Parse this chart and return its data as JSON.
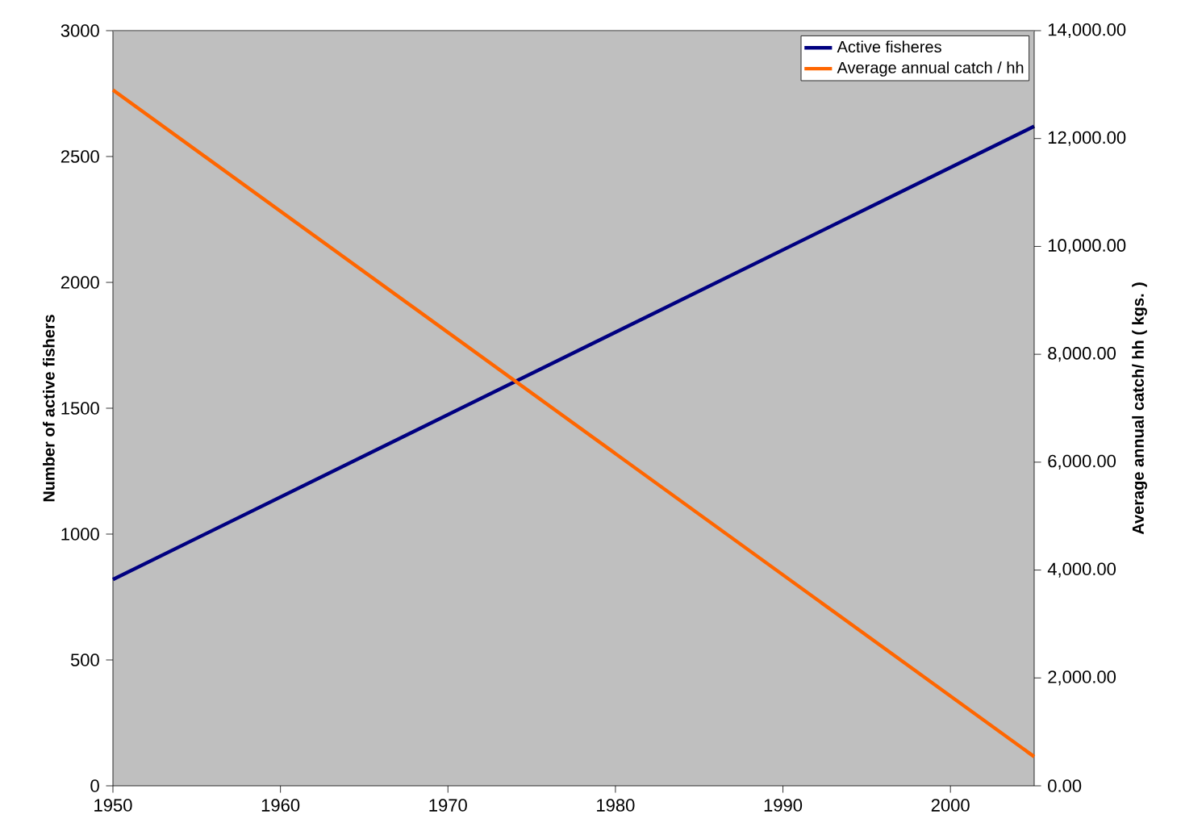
{
  "chart_data": {
    "type": "line",
    "ylabel": "Number of active fishers",
    "y2label": "Average annual catch/ hh ( kgs. )",
    "series": [
      {
        "name": "Active fisheres",
        "color": "#000080",
        "values": [
          820,
          2620
        ]
      },
      {
        "name": "Average annual catch / hh",
        "color": "#ff6600",
        "values": [
          12900,
          540
        ],
        "axis": "y2"
      }
    ],
    "x": [
      1950,
      2005
    ],
    "xlim": [
      1950,
      2005
    ],
    "xticks": [
      1950,
      1960,
      1970,
      1980,
      1990,
      2000
    ],
    "ylim": [
      0,
      3000
    ],
    "yticks": [
      0,
      500,
      1000,
      1500,
      2000,
      2500,
      3000
    ],
    "y2lim": [
      0,
      14000
    ],
    "y2ticks": [
      {
        "value": 0,
        "label": "0.00"
      },
      {
        "value": 2000,
        "label": "2,000.00"
      },
      {
        "value": 4000,
        "label": "4,000.00"
      },
      {
        "value": 6000,
        "label": "6,000.00"
      },
      {
        "value": 8000,
        "label": "8,000.00"
      },
      {
        "value": 10000,
        "label": "10,000.00"
      },
      {
        "value": 12000,
        "label": "12,000.00"
      },
      {
        "value": 14000,
        "label": "14,000.00"
      }
    ],
    "legend": "top right"
  }
}
